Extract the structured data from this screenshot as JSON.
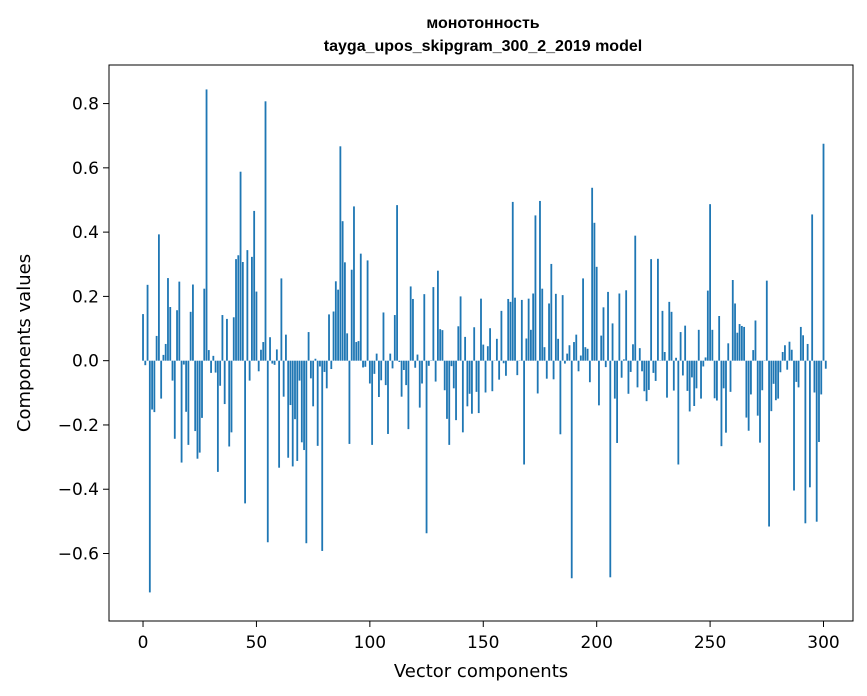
{
  "chart_data": {
    "type": "bar",
    "title": "монотонность",
    "subtitle": "tayga_upos_skipgram_300_2_2019 model",
    "xlabel": "Vector components",
    "ylabel": "Components values",
    "xlim": [
      -15,
      313
    ],
    "ylim": [
      -0.81,
      0.92
    ],
    "xticks": [
      0,
      50,
      100,
      150,
      200,
      250,
      300
    ],
    "yticks": [
      -0.6,
      -0.4,
      -0.2,
      0.0,
      0.2,
      0.4,
      0.6,
      0.8
    ],
    "xtick_labels": [
      "0",
      "50",
      "100",
      "150",
      "200",
      "250",
      "300"
    ],
    "ytick_labels": [
      "−0.6",
      "−0.4",
      "−0.2",
      "0.0",
      "0.2",
      "0.4",
      "0.6",
      "0.8"
    ],
    "bar_color": "#1f77b4",
    "grid": false,
    "values": [
      0.145,
      -0.014,
      0.236,
      -0.721,
      -0.152,
      -0.16,
      0.077,
      0.393,
      -0.118,
      0.018,
      0.052,
      0.257,
      0.167,
      -0.062,
      -0.243,
      0.157,
      0.246,
      -0.317,
      -0.012,
      -0.159,
      -0.262,
      0.152,
      0.237,
      -0.219,
      -0.305,
      -0.286,
      -0.178,
      0.224,
      0.844,
      0.033,
      -0.038,
      0.015,
      -0.037,
      -0.346,
      -0.078,
      0.142,
      -0.135,
      0.13,
      -0.267,
      -0.223,
      0.135,
      0.316,
      0.328,
      0.588,
      0.307,
      -0.444,
      0.344,
      -0.062,
      0.323,
      0.466,
      0.215,
      -0.033,
      0.034,
      0.058,
      0.807,
      -0.565,
      0.073,
      -0.009,
      -0.013,
      0.035,
      -0.333,
      0.256,
      -0.112,
      0.081,
      -0.302,
      -0.138,
      -0.329,
      -0.182,
      -0.312,
      -0.062,
      -0.254,
      -0.278,
      -0.568,
      0.089,
      -0.055,
      -0.142,
      0.006,
      -0.265,
      -0.018,
      -0.592,
      -0.035,
      -0.086,
      0.144,
      -0.026,
      0.153,
      0.247,
      0.221,
      0.667,
      0.434,
      0.306,
      0.085,
      -0.259,
      0.283,
      0.48,
      0.058,
      0.061,
      0.333,
      -0.021,
      -0.019,
      0.312,
      -0.071,
      -0.262,
      -0.041,
      0.022,
      -0.113,
      -0.061,
      0.15,
      -0.076,
      -0.228,
      0.022,
      -0.024,
      0.142,
      0.484,
      -0.004,
      -0.112,
      -0.029,
      -0.076,
      -0.213,
      0.231,
      0.192,
      -0.022,
      0.019,
      -0.146,
      -0.071,
      0.207,
      -0.537,
      -0.016,
      -0.001,
      0.229,
      -0.065,
      0.28,
      0.098,
      0.095,
      -0.092,
      -0.181,
      -0.262,
      -0.017,
      -0.086,
      -0.185,
      0.107,
      0.2,
      -0.223,
      0.074,
      -0.142,
      -0.103,
      -0.165,
      0.104,
      -0.097,
      -0.163,
      0.193,
      0.05,
      -0.099,
      0.045,
      0.101,
      -0.095,
      0.001,
      0.068,
      -0.059,
      0.155,
      -0.008,
      -0.047,
      0.192,
      0.183,
      0.494,
      0.196,
      -0.045,
      -0.001,
      0.189,
      -0.323,
      0.069,
      0.193,
      0.096,
      0.209,
      0.452,
      -0.102,
      0.497,
      0.224,
      0.042,
      -0.056,
      0.178,
      0.301,
      -0.058,
      0.208,
      0.068,
      -0.229,
      0.204,
      -0.009,
      0.022,
      0.048,
      -0.677,
      0.058,
      0.081,
      -0.033,
      0.016,
      0.256,
      0.042,
      0.037,
      -0.067,
      0.538,
      0.429,
      0.292,
      -0.139,
      0.078,
      0.166,
      -0.02,
      0.214,
      -0.674,
      0.116,
      -0.118,
      -0.256,
      0.209,
      -0.053,
      0.004,
      0.219,
      -0.103,
      -0.035,
      0.051,
      0.389,
      -0.083,
      0.039,
      -0.033,
      -0.095,
      -0.126,
      -0.091,
      0.316,
      -0.038,
      -0.063,
      0.317,
      0.001,
      0.155,
      0.027,
      -0.115,
      0.183,
      0.152,
      -0.093,
      0.009,
      -0.323,
      0.089,
      -0.046,
      0.109,
      -0.094,
      -0.158,
      -0.052,
      -0.141,
      -0.086,
      0.096,
      -0.118,
      -0.018,
      0.01,
      0.218,
      0.487,
      0.096,
      -0.117,
      -0.124,
      0.139,
      -0.266,
      -0.086,
      -0.224,
      0.054,
      -0.097,
      0.251,
      0.178,
      0.087,
      0.114,
      0.108,
      0.105,
      -0.177,
      -0.218,
      -0.105,
      0.033,
      0.125,
      -0.171,
      -0.255,
      -0.092,
      0.0,
      0.249,
      -0.516,
      -0.157,
      -0.072,
      -0.123,
      -0.118,
      -0.036,
      0.027,
      0.048,
      -0.028,
      0.059,
      0.034,
      -0.404,
      -0.066,
      -0.083,
      0.105,
      0.079,
      -0.506,
      0.052,
      -0.394,
      0.455,
      -0.099,
      -0.501,
      -0.253,
      -0.105,
      0.675,
      -0.025
    ]
  }
}
